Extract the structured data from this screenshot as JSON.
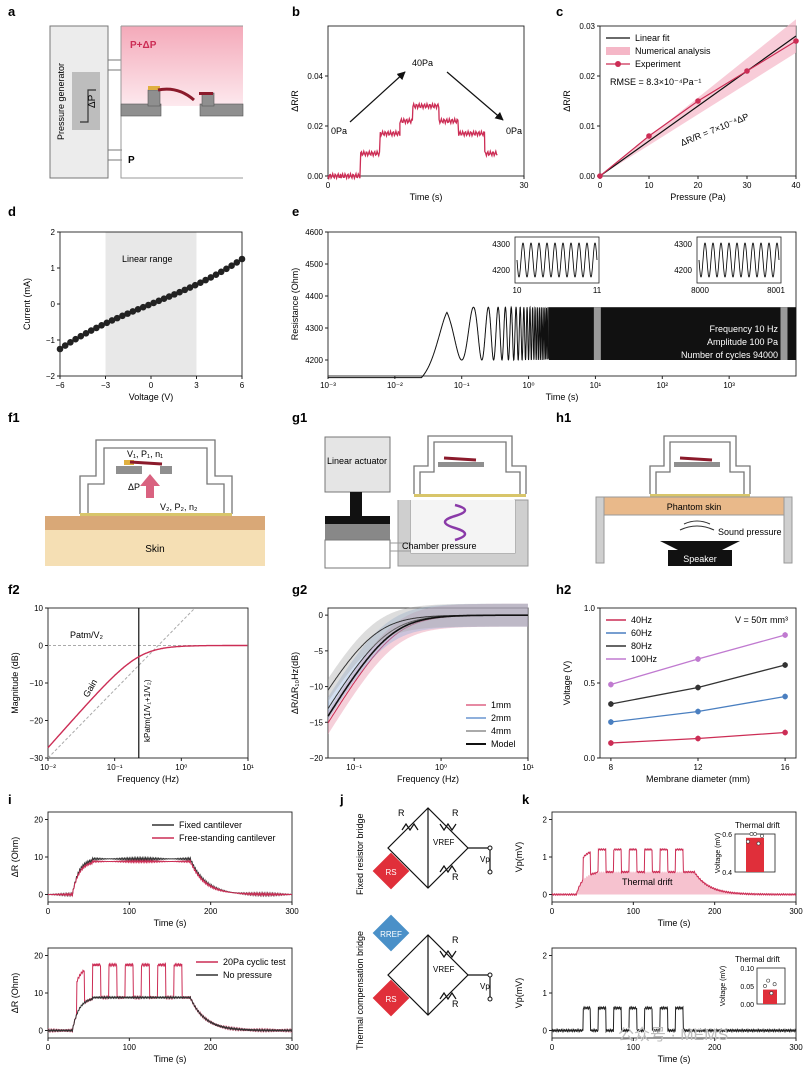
{
  "panel_labels": {
    "a": "a",
    "b": "b",
    "c": "c",
    "d": "d",
    "e": "e",
    "f1": "f1",
    "g1": "g1",
    "h1": "h1",
    "f2": "f2",
    "g2": "g2",
    "h2": "h2",
    "i": "i",
    "j": "j",
    "k": "k"
  },
  "colors": {
    "accent": "#cc2d55",
    "pink_fill": "#f5b7c7",
    "grey_band": "#e8e8e8",
    "dark": "#222222",
    "blue": "#4a7fc0",
    "violet": "#c07ad0",
    "skin": "#f5dfb4",
    "skin_top": "#d9a877",
    "mems_grey": "#8f8f8f",
    "gold": "#e0b040"
  },
  "a": {
    "gen_label": "Pressure generator",
    "dp_label": "ΔP",
    "top_label": "P+ΔP",
    "bottom_label": "P"
  },
  "b": {
    "xlabel": "Time (s)",
    "ylabel": "ΔR/R",
    "ann_start": "0Pa",
    "ann_peak": "40Pa",
    "ann_end": "0Pa"
  },
  "c": {
    "xlabel": "Pressure (Pa)",
    "ylabel": "ΔR/R",
    "legend_fit": "Linear fit",
    "legend_num": "Numerical analysis",
    "legend_exp": "Experiment",
    "rmse": "RMSE = 8.3×10⁻⁴Pa⁻¹",
    "eq": "ΔR/R = 7×10⁻⁴ΔP"
  },
  "d": {
    "xlabel": "Voltage (V)",
    "ylabel": "Current (mA)",
    "band_label": "Linear range"
  },
  "e": {
    "xlabel": "Time (s)",
    "ylabel": "Resistance (Ohm)",
    "info1": "Frequency 10 Hz",
    "info2": "Amplitude 100 Pa",
    "info3": "Number of cycles 94000",
    "inset1_x0": "10",
    "inset1_x1": "11",
    "inset2_x0": "8000",
    "inset2_x1": "8001",
    "inset_y0": "4200",
    "inset_y1": "4300"
  },
  "f1": {
    "label_top": "V₁, P₁, n₁",
    "label_dp": "ΔP",
    "label_bottom": "V₂, P₂, n₂",
    "skin": "Skin"
  },
  "g1": {
    "actuator": "Linear actuator",
    "chamber": "Chamber pressure"
  },
  "h1": {
    "phantom": "Phantom skin",
    "sound": "Sound pressure",
    "speaker": "Speaker"
  },
  "f2": {
    "xlabel": "Frequency (Hz)",
    "ylabel": "Magnitude (dB)",
    "ann_patm": "Patm/V₂",
    "ann_gain": "Gain",
    "ann_k": "kPatm(1/V₁+1/V₂)"
  },
  "g2": {
    "xlabel": "Frequency (Hz)",
    "ylabel": "ΔR/ΔR₁₀Hz(dB)",
    "leg1": "1mm",
    "leg2": "2mm",
    "leg3": "4mm",
    "leg4": "Model"
  },
  "h2": {
    "xlabel": "Membrane diameter (mm)",
    "ylabel": "Voltage (V)",
    "leg1": "40Hz",
    "leg2": "60Hz",
    "leg3": "80Hz",
    "leg4": "100Hz",
    "note": "V = 50π mm³"
  },
  "i": {
    "xlabel": "Time (s)",
    "ylabel": "ΔR (Ohm)",
    "leg_top1": "Fixed cantilever",
    "leg_top2": "Free-standing cantilever",
    "leg_bot1": "20Pa cyclic test",
    "leg_bot2": "No pressure"
  },
  "j": {
    "r": "R",
    "vref": "VREF",
    "vp": "Vp",
    "rref": "RREF",
    "rs": "RS",
    "top_side": "Fixed resistor bridge",
    "bot_side": "Thermal compensation bridge"
  },
  "k": {
    "xlabel": "Time (s)",
    "ylabel": "Vp(mV)",
    "thermal": "Thermal drift",
    "inset_title": "Thermal drift",
    "inset_ylabel": "Voltage (mV)"
  },
  "watermark": "公众号 · MEMS",
  "chart_data": [
    {
      "id": "b",
      "type": "line",
      "xlim": [
        0,
        30
      ],
      "ylim": [
        0,
        0.06
      ],
      "xticks": [
        0,
        30
      ],
      "yticks": [
        0,
        0.02,
        0.04
      ],
      "x": [
        0,
        2,
        5,
        8,
        11,
        13,
        17,
        20,
        24,
        26
      ],
      "y": [
        0,
        0,
        0.009,
        0.017,
        0.022,
        0.028,
        0.022,
        0.017,
        0.009,
        0
      ]
    },
    {
      "id": "c",
      "type": "scatter",
      "xlim": [
        0,
        40
      ],
      "ylim": [
        0,
        0.03
      ],
      "xticks": [
        0,
        10,
        20,
        30,
        40
      ],
      "yticks": [
        0,
        0.01,
        0.02,
        0.03
      ],
      "x": [
        0,
        10,
        20,
        30,
        40
      ],
      "experiment": [
        0,
        0.008,
        0.015,
        0.021,
        0.027
      ],
      "fit": [
        0,
        0.007,
        0.014,
        0.021,
        0.028
      ]
    },
    {
      "id": "d",
      "type": "scatter",
      "xlim": [
        -6,
        6
      ],
      "ylim": [
        -2,
        2
      ],
      "xticks": [
        -6,
        -3,
        0,
        3,
        6
      ],
      "yticks": [
        -2,
        -1,
        0,
        1,
        2
      ],
      "linear_range": [
        -3,
        3
      ],
      "x_from": -6,
      "x_to": 6,
      "points": 36,
      "i_at_min": -1.25,
      "i_at_max": 1.25
    },
    {
      "id": "e",
      "type": "line",
      "xlog": true,
      "xlim": [
        0.001,
        10000
      ],
      "ylim": [
        4150,
        4600
      ],
      "yticks": [
        4200,
        4300,
        4400,
        4500,
        4600
      ],
      "baseline": 4145,
      "peak": 4365,
      "trough": 4200
    },
    {
      "id": "f2",
      "type": "line",
      "xlog": true,
      "xlim": [
        0.01,
        10
      ],
      "ylim": [
        -30,
        10
      ],
      "yticks": [
        -30,
        -20,
        -10,
        0,
        10
      ],
      "corner_hz": 0.23
    },
    {
      "id": "g2",
      "type": "line",
      "xlog": true,
      "xlim": [
        0.05,
        10
      ],
      "ylim": [
        -20,
        1
      ],
      "yticks": [
        -20,
        -15,
        -10,
        -5,
        0
      ],
      "series": [
        {
          "name": "1mm",
          "f0": 0.28
        },
        {
          "name": "2mm",
          "f0": 0.22
        },
        {
          "name": "4mm",
          "f0": 0.16
        },
        {
          "name": "Model",
          "f0": 0.25
        }
      ]
    },
    {
      "id": "h2",
      "type": "line",
      "categories": [
        8,
        12,
        16
      ],
      "ylim": [
        0,
        1
      ],
      "yticks": [
        0,
        0.5,
        1
      ],
      "series": [
        {
          "name": "40Hz",
          "values": [
            0.1,
            0.13,
            0.17
          ]
        },
        {
          "name": "60Hz",
          "values": [
            0.24,
            0.31,
            0.41
          ]
        },
        {
          "name": "80Hz",
          "values": [
            0.36,
            0.47,
            0.62
          ]
        },
        {
          "name": "100Hz",
          "values": [
            0.49,
            0.66,
            0.82
          ]
        }
      ]
    },
    {
      "id": "i_top",
      "type": "line",
      "xlim": [
        0,
        300
      ],
      "ylim": [
        -2,
        22
      ],
      "yticks": [
        0,
        10,
        20
      ],
      "plateau_fixed": 9.5,
      "plateau_free": 8.8,
      "on": 30,
      "off": 175
    },
    {
      "id": "i_bot",
      "type": "line",
      "xlim": [
        0,
        300
      ],
      "ylim": [
        -2,
        22
      ],
      "yticks": [
        0,
        10,
        20
      ],
      "plateau": 8.8,
      "pulse": 17.5,
      "pulses": 7,
      "on": 30,
      "off": 175
    },
    {
      "id": "k_top",
      "type": "area",
      "xlim": [
        0,
        300
      ],
      "ylim": [
        -0.2,
        2.2
      ],
      "yticks": [
        0,
        1,
        2
      ],
      "drift": 0.6,
      "pulse": 1.2,
      "pulses": 7
    },
    {
      "id": "k_bot",
      "type": "line",
      "xlim": [
        0,
        300
      ],
      "ylim": [
        -0.2,
        2.2
      ],
      "yticks": [
        0,
        1,
        2
      ],
      "pulse": 0.6,
      "pulses": 7
    },
    {
      "id": "k_inset_top",
      "type": "bar",
      "ylim": [
        0.4,
        0.6
      ],
      "yticks": [
        0.4,
        0.6
      ],
      "value": 0.58
    },
    {
      "id": "k_inset_bot",
      "type": "bar",
      "ylim": [
        0,
        0.1
      ],
      "yticks": [
        0,
        0.05,
        0.1
      ],
      "value": 0.04
    }
  ]
}
